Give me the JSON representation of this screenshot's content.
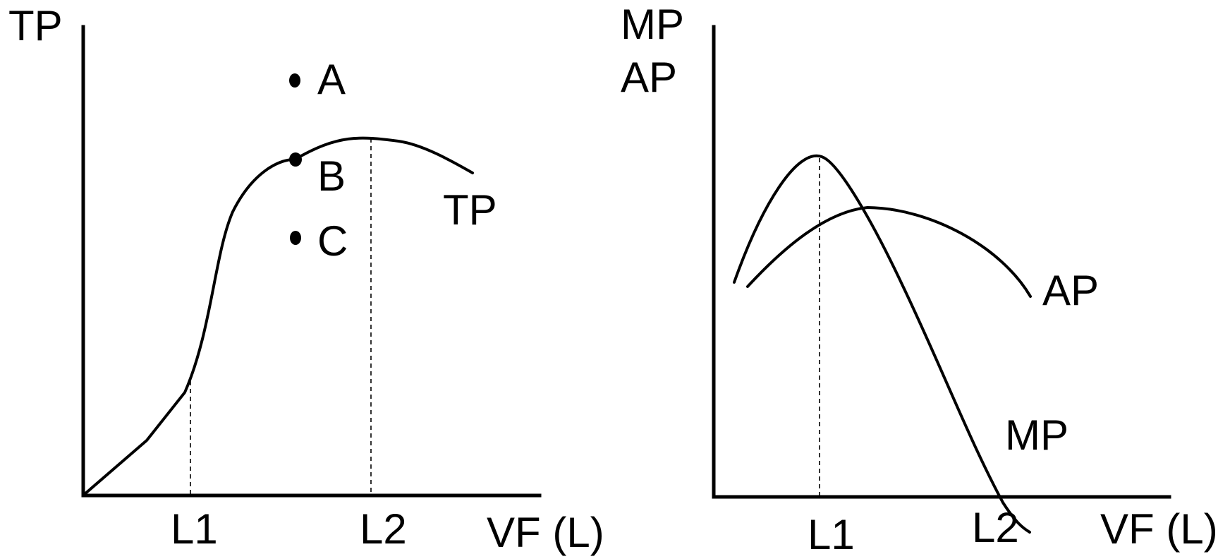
{
  "left_panel": {
    "y_axis_label": "TP",
    "x_axis_label": "VF (L)",
    "x_ticks": [
      "L1",
      "L2"
    ],
    "curve_label": "TP",
    "points": [
      {
        "label": "A"
      },
      {
        "label": "B"
      },
      {
        "label": "C"
      }
    ]
  },
  "right_panel": {
    "y_axis_label_line1": "MP",
    "y_axis_label_line2": "AP",
    "x_axis_label": "VF (L)",
    "x_ticks": [
      "L1",
      "L2"
    ],
    "curves": [
      {
        "label": "AP"
      },
      {
        "label": "MP"
      }
    ]
  },
  "colors": {
    "ink": "#000000",
    "background": "#ffffff"
  }
}
